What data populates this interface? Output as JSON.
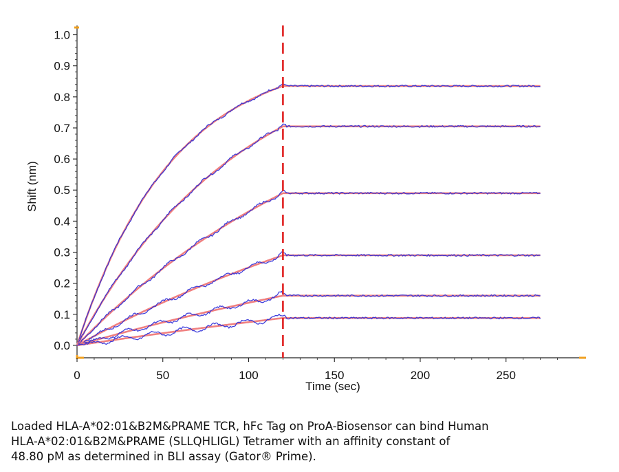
{
  "chart_data": {
    "type": "line",
    "xlabel": "Time (sec)",
    "ylabel": "Shift (nm)",
    "xlim": [
      0,
      295
    ],
    "ylim": [
      -0.04,
      1.03
    ],
    "x_ticks": [
      "0",
      "50",
      "100",
      "150",
      "200",
      "250"
    ],
    "y_ticks": [
      "0.0",
      "0.1",
      "0.2",
      "0.3",
      "0.4",
      "0.5",
      "0.6",
      "0.7",
      "0.8",
      "0.9",
      "1.0"
    ],
    "association_end_time": 120,
    "dissociation_end_time": 270,
    "marker_line_color": "#e02020",
    "raw_color": "#2b2bd8",
    "fit_color": "#f08080",
    "series": [
      {
        "plateau": 0.835,
        "k": 0.018
      },
      {
        "plateau": 0.705,
        "k": 0.0105
      },
      {
        "plateau": 0.49,
        "k": 0.006
      },
      {
        "plateau": 0.29,
        "k": 0.004
      },
      {
        "plateau": 0.16,
        "k": 0.003
      },
      {
        "plateau": 0.088,
        "k": 0.002
      }
    ],
    "grid": false
  },
  "caption": {
    "lines": [
      "Loaded HLA-A*02:01&B2M&PRAME TCR, hFc Tag on ProA-Biosensor can bind Human",
      "HLA-A*02:01&B2M&PRAME (SLLQHLIGL) Tetramer with an affinity constant of",
      "48.80 pM as determined in BLI assay (Gator® Prime)."
    ]
  }
}
